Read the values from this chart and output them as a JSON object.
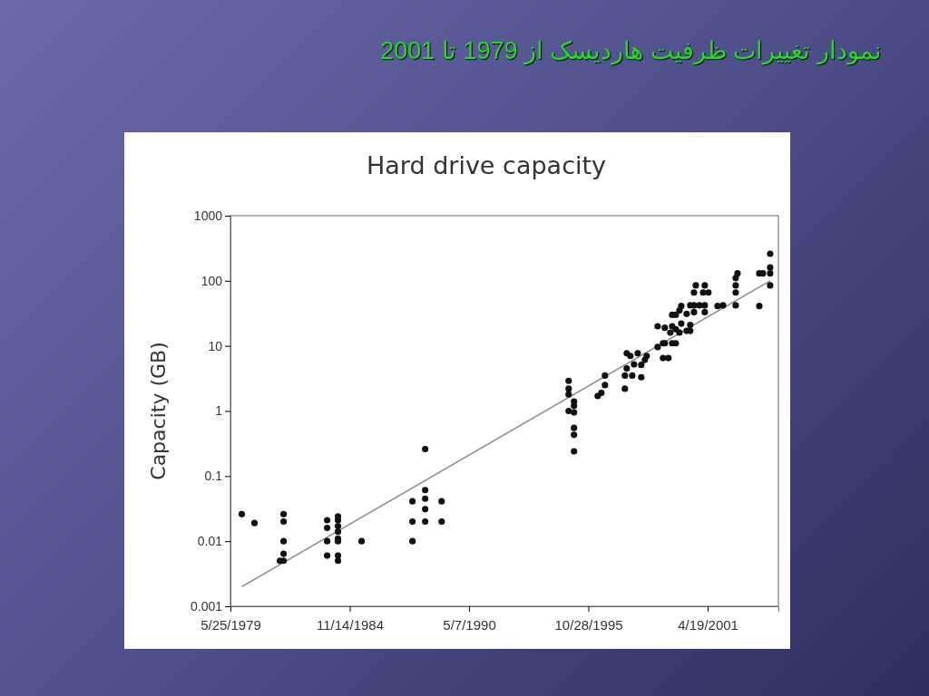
{
  "chart_data": {
    "type": "scatter",
    "title": "نمودار تغییرات ظرفیت هاردیسک از 1979 تا 2001",
    "subtitle": "Hard drive capacity",
    "ylabel": "Capacity (GB)",
    "log": "y",
    "grid": false,
    "marker": "circle",
    "xlim": [
      "1979-05-25",
      "2004-07-17"
    ],
    "xticks": [
      {
        "value": "1979-05-25",
        "label": "5/25/1979"
      },
      {
        "value": "1984-11-14",
        "label": "11/14/1984"
      },
      {
        "value": "1990-05-07",
        "label": "5/7/1990"
      },
      {
        "value": "1995-10-28",
        "label": "10/28/1995"
      },
      {
        "value": "2001-04-19",
        "label": "4/19/2001"
      }
    ],
    "ylim": [
      0.001,
      1000
    ],
    "yticks": [
      0.001,
      0.01,
      0.1,
      1,
      10,
      100,
      1000
    ],
    "series": [
      {
        "color": "#111111",
        "x": [
          "1979-12",
          "1980-07",
          "1981-09",
          "1981-11",
          "1981-11",
          "1981-11",
          "1981-11",
          "1981-11",
          "1983-11",
          "1983-11",
          "1983-11",
          "1983-11",
          "1984-05",
          "1984-05",
          "1984-05",
          "1984-05",
          "1984-05",
          "1984-05",
          "1984-05",
          "1984-05",
          "1985-06",
          "1987-10",
          "1987-10",
          "1987-10",
          "1988-05",
          "1988-05",
          "1988-05",
          "1988-05",
          "1988-05",
          "1989-02",
          "1989-02",
          "1994-12",
          "1994-12",
          "1994-12",
          "1994-12",
          "1995-03",
          "1995-03",
          "1995-03",
          "1995-03",
          "1995-03",
          "1995-03",
          "1996-04",
          "1996-06",
          "1996-08",
          "1996-08",
          "1997-07",
          "1997-07",
          "1997-08",
          "1997-08",
          "1997-10",
          "1997-11",
          "1997-12",
          "1998-02",
          "1998-04",
          "1998-04",
          "1998-06",
          "1998-07",
          "1999-01",
          "1999-01",
          "1999-04",
          "1999-04",
          "1999-05",
          "1999-05",
          "1999-07",
          "1999-08",
          "1999-09",
          "1999-09",
          "1999-09",
          "1999-11",
          "1999-11",
          "1999-11",
          "2000-01",
          "2000-01",
          "2000-02",
          "2000-02",
          "2000-05",
          "2000-05",
          "2000-07",
          "2000-07",
          "2000-07",
          "2000-09",
          "2000-09",
          "2000-09",
          "2000-10",
          "2000-12",
          "2001-02",
          "2001-03",
          "2001-03",
          "2001-03",
          "2001-05",
          "2001-10",
          "2002-01",
          "2002-08",
          "2002-08",
          "2002-08",
          "2002-08",
          "2002-09",
          "2003-09",
          "2003-09",
          "2003-11",
          "2004-03",
          "2004-03",
          "2004-03",
          "2004-03"
        ],
        "values": [
          0.026,
          0.019,
          0.005,
          0.026,
          0.02,
          0.01,
          0.0064,
          0.005,
          0.021,
          0.016,
          0.01,
          0.006,
          0.024,
          0.021,
          0.017,
          0.014,
          0.011,
          0.01,
          0.006,
          0.005,
          0.01,
          0.041,
          0.02,
          0.01,
          0.26,
          0.061,
          0.045,
          0.031,
          0.02,
          0.041,
          0.02,
          2.9,
          2.2,
          1.8,
          1.0,
          1.4,
          1.2,
          0.95,
          0.55,
          0.43,
          0.24,
          1.7,
          1.9,
          2.5,
          3.5,
          3.5,
          2.2,
          4.5,
          7.7,
          7.0,
          3.5,
          5.2,
          7.7,
          5.1,
          3.3,
          6.1,
          7.0,
          9.6,
          20,
          6.5,
          11,
          19,
          11,
          6.5,
          16,
          11,
          20,
          30,
          11,
          18,
          30,
          16,
          35,
          41,
          22,
          17,
          31,
          17,
          21,
          42,
          42,
          33,
          66,
          85,
          42,
          66,
          42,
          33,
          85,
          66,
          41,
          42,
          42,
          66,
          85,
          110,
          130,
          41,
          130,
          130,
          160,
          130,
          85,
          260
        ]
      },
      {
        "type": "line",
        "marker": "none",
        "color": "#8a8a8a",
        "x": [
          "1979-12",
          "2004-03"
        ],
        "values": [
          0.002,
          100
        ]
      }
    ]
  }
}
